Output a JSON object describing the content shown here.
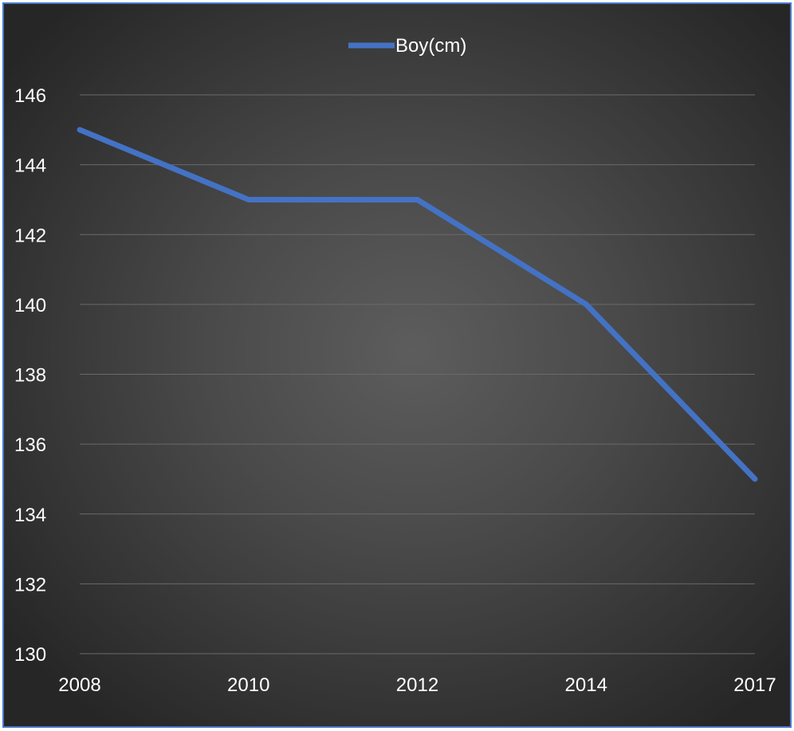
{
  "chart_data": {
    "type": "line",
    "title": "",
    "xlabel": "",
    "ylabel": "",
    "categories": [
      "2008",
      "2010",
      "2012",
      "2014",
      "2017"
    ],
    "series": [
      {
        "name": "Boy(cm)",
        "values": [
          145,
          143,
          143,
          140,
          135
        ],
        "color": "#4472c4"
      }
    ],
    "ylim": [
      130,
      146
    ],
    "y_ticks": [
      130,
      132,
      134,
      136,
      138,
      140,
      142,
      144,
      146
    ],
    "grid": true,
    "legend_position": "top",
    "background_color": "#3c3c3c",
    "text_color": "#ffffff",
    "border_color": "#4a78c8"
  }
}
